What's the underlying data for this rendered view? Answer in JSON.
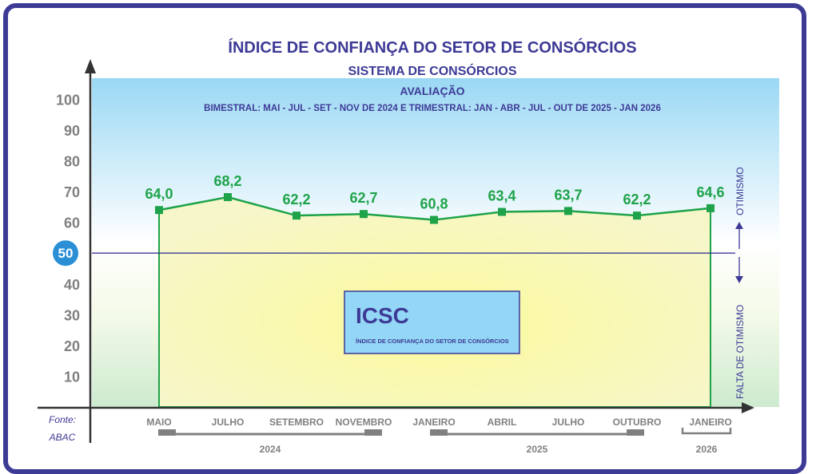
{
  "chart_data": {
    "type": "line",
    "title": "ÍNDICE DE CONFIANÇA DO SETOR DE CONSÓRCIOS",
    "subtitle": "SISTEMA DE CONSÓRCIOS",
    "evaluation_title": "AVALIAÇÃO",
    "evaluation_note": "BIMESTRAL: MAI - JUL - SET - NOV DE 2024 E TRIMESTRAL: JAN - ABR - JUL - OUT DE 2025 - JAN 2026",
    "categories": [
      "MAIO",
      "JULHO",
      "SETEMBRO",
      "NOVEMBRO",
      "JANEIRO",
      "ABRIL",
      "JULHO",
      "OUTUBRO",
      "JANEIRO"
    ],
    "values": [
      64.0,
      68.2,
      62.2,
      62.7,
      60.8,
      63.4,
      63.7,
      62.2,
      64.6
    ],
    "value_labels": [
      "64,0",
      "68,2",
      "62,2",
      "62,7",
      "60,8",
      "63,4",
      "63,7",
      "62,2",
      "64,6"
    ],
    "years": [
      {
        "label": "2024",
        "from": 0,
        "to": 3
      },
      {
        "label": "2025",
        "from": 4,
        "to": 7
      },
      {
        "label": "2026",
        "from": 8,
        "to": 8
      }
    ],
    "yticks": [
      10,
      20,
      30,
      40,
      50,
      60,
      70,
      80,
      90,
      100
    ],
    "ylim": [
      0,
      100
    ],
    "reference_line": 50,
    "upper_label": "OTIMISMO",
    "lower_label": "FALTA DE OTIMISMO",
    "legend_box": {
      "title": "ICSC",
      "subtitle": "ÍNDICE DE CONFIANÇA DO SETOR DE CONSÓRCIOS"
    },
    "source_label": "Fonte:",
    "source": "ABAC",
    "colors": {
      "line": "#1fa34a",
      "title": "#3d3a96",
      "axis_text": "#808080",
      "reference": "#3d3a96",
      "badge": "#2b8fd6",
      "box": "#93d6f5"
    }
  }
}
